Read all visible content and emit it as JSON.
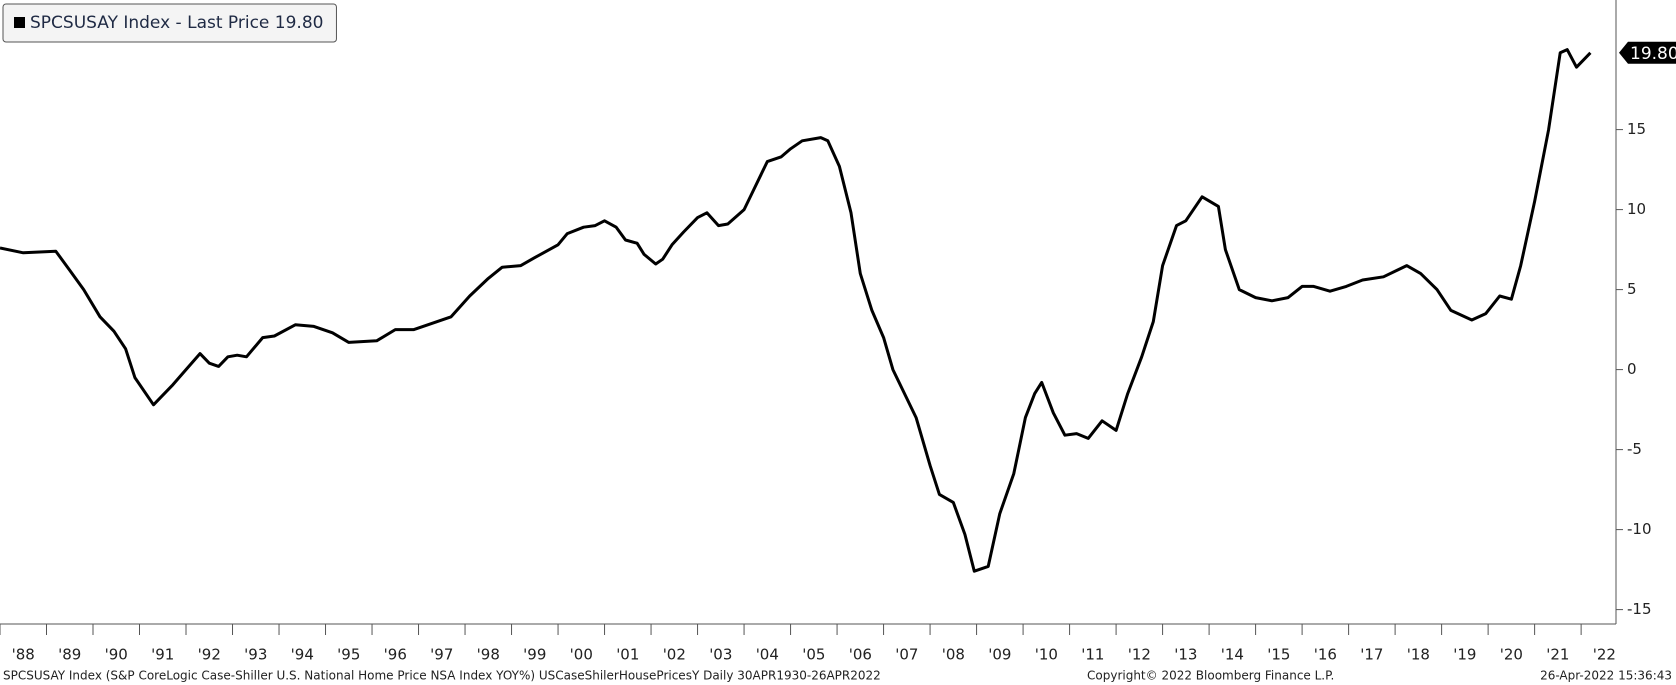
{
  "chart_data": {
    "type": "line",
    "series": [
      {
        "name": "SPCSUSAY Index - Last Price 19.80",
        "color": "#000000",
        "values": [
          7.6,
          7.3,
          7.4,
          6.2,
          5.0,
          3.3,
          2.4,
          1.3,
          -0.5,
          -2.2,
          -1.0,
          0.0,
          1.0,
          0.4,
          0.2,
          0.8,
          0.9,
          0.8,
          2.0,
          2.1,
          2.8,
          2.7,
          2.3,
          1.7,
          1.8,
          2.5,
          2.5,
          2.8,
          3.3,
          4.6,
          5.7,
          6.4,
          6.5,
          7.0,
          7.8,
          8.5,
          8.9,
          9.0,
          9.3,
          8.9,
          8.1,
          7.9,
          7.2,
          6.6,
          6.9,
          7.8,
          8.6,
          9.5,
          9.8,
          9.0,
          9.1,
          10.0,
          11.2,
          13.0,
          13.3,
          13.8,
          14.3,
          14.5,
          14.3,
          12.7,
          9.8,
          6.0,
          3.7,
          2.0,
          0.0,
          -1.8,
          -3.0,
          -6.0,
          -7.8,
          -8.3,
          -10.3,
          -12.6,
          -12.3,
          -9.0,
          -6.5,
          -3.0,
          -1.5,
          -0.8,
          -2.7,
          -4.1,
          -4.0,
          -4.3,
          -3.2,
          -3.8,
          -1.5,
          0.8,
          3.0,
          6.5,
          9.0,
          9.3,
          10.8,
          10.2,
          7.5,
          5.0,
          4.5,
          4.3,
          4.5,
          5.2,
          5.2,
          4.9,
          5.2,
          5.6,
          5.8,
          6.5,
          6.0,
          5.0,
          3.7,
          3.1,
          3.5,
          4.6,
          4.4,
          6.5,
          10.5,
          15.0,
          19.8,
          20.0,
          18.9,
          19.8
        ]
      }
    ],
    "x": [
      1988.0,
      1988.5,
      1989.2,
      1989.5,
      1989.8,
      1990.15,
      1990.45,
      1990.7,
      1990.9,
      1991.3,
      1991.7,
      1992.0,
      1992.3,
      1992.5,
      1992.7,
      1992.9,
      1993.1,
      1993.3,
      1993.65,
      1993.9,
      1994.35,
      1994.75,
      1995.15,
      1995.5,
      1996.1,
      1996.5,
      1996.9,
      1997.2,
      1997.7,
      1998.1,
      1998.5,
      1998.8,
      1999.2,
      1999.5,
      2000.0,
      2000.2,
      2000.55,
      2000.8,
      2001.0,
      2001.25,
      2001.45,
      2001.7,
      2001.85,
      2002.1,
      2002.25,
      2002.45,
      2002.7,
      2003.0,
      2003.2,
      2003.45,
      2003.65,
      2004.0,
      2004.2,
      2004.5,
      2004.8,
      2005.0,
      2005.25,
      2005.65,
      2005.8,
      2006.05,
      2006.3,
      2006.5,
      2006.75,
      2007.0,
      2007.2,
      2007.5,
      2007.7,
      2008.0,
      2008.2,
      2008.5,
      2008.75,
      2008.95,
      2009.25,
      2009.5,
      2009.8,
      2010.05,
      2010.25,
      2010.4,
      2010.65,
      2010.9,
      2011.15,
      2011.4,
      2011.7,
      2012.0,
      2012.25,
      2012.55,
      2012.8,
      2013.0,
      2013.3,
      2013.5,
      2013.85,
      2014.2,
      2014.35,
      2014.65,
      2015.0,
      2015.35,
      2015.7,
      2016.0,
      2016.25,
      2016.6,
      2016.95,
      2017.3,
      2017.75,
      2018.25,
      2018.55,
      2018.9,
      2019.2,
      2019.65,
      2019.95,
      2020.25,
      2020.5,
      2020.7,
      2021.0,
      2021.3,
      2021.55,
      2021.7,
      2021.9,
      2022.2
    ],
    "last_value": {
      "value": 19.8,
      "label": "19.80"
    },
    "xlim": [
      1988.0,
      2022.75
    ],
    "xticks": [
      {
        "value": 1988,
        "label": "'88"
      },
      {
        "value": 1989,
        "label": "'89"
      },
      {
        "value": 1990,
        "label": "'90"
      },
      {
        "value": 1991,
        "label": "'91"
      },
      {
        "value": 1992,
        "label": "'92"
      },
      {
        "value": 1993,
        "label": "'93"
      },
      {
        "value": 1994,
        "label": "'94"
      },
      {
        "value": 1995,
        "label": "'95"
      },
      {
        "value": 1996,
        "label": "'96"
      },
      {
        "value": 1997,
        "label": "'97"
      },
      {
        "value": 1998,
        "label": "'98"
      },
      {
        "value": 1999,
        "label": "'99"
      },
      {
        "value": 2000,
        "label": "'00"
      },
      {
        "value": 2001,
        "label": "'01"
      },
      {
        "value": 2002,
        "label": "'02"
      },
      {
        "value": 2003,
        "label": "'03"
      },
      {
        "value": 2004,
        "label": "'04"
      },
      {
        "value": 2005,
        "label": "'05"
      },
      {
        "value": 2006,
        "label": "'06"
      },
      {
        "value": 2007,
        "label": "'07"
      },
      {
        "value": 2008,
        "label": "'08"
      },
      {
        "value": 2009,
        "label": "'09"
      },
      {
        "value": 2010,
        "label": "'10"
      },
      {
        "value": 2011,
        "label": "'11"
      },
      {
        "value": 2012,
        "label": "'12"
      },
      {
        "value": 2013,
        "label": "'13"
      },
      {
        "value": 2014,
        "label": "'14"
      },
      {
        "value": 2015,
        "label": "'15"
      },
      {
        "value": 2016,
        "label": "'16"
      },
      {
        "value": 2017,
        "label": "'17"
      },
      {
        "value": 2018,
        "label": "'18"
      },
      {
        "value": 2019,
        "label": "'19"
      },
      {
        "value": 2020,
        "label": "'20"
      },
      {
        "value": 2021,
        "label": "'21"
      },
      {
        "value": 2022,
        "label": "'22"
      }
    ],
    "ylim": [
      -15.9,
      23.1
    ],
    "yticks": [
      -15,
      -10,
      -5,
      0,
      5,
      10,
      15
    ],
    "legend": "top-left",
    "footer": [
      "SPCSUSAY Index (S&P CoreLogic Case-Shiller U.S. National Home Price NSA Index YOY%) USCaseShilerHousePricesY  Daily 30APR1930-26APR2022",
      "Copyright© 2022 Bloomberg Finance L.P.",
      "26-Apr-2022 15:36:43"
    ]
  }
}
